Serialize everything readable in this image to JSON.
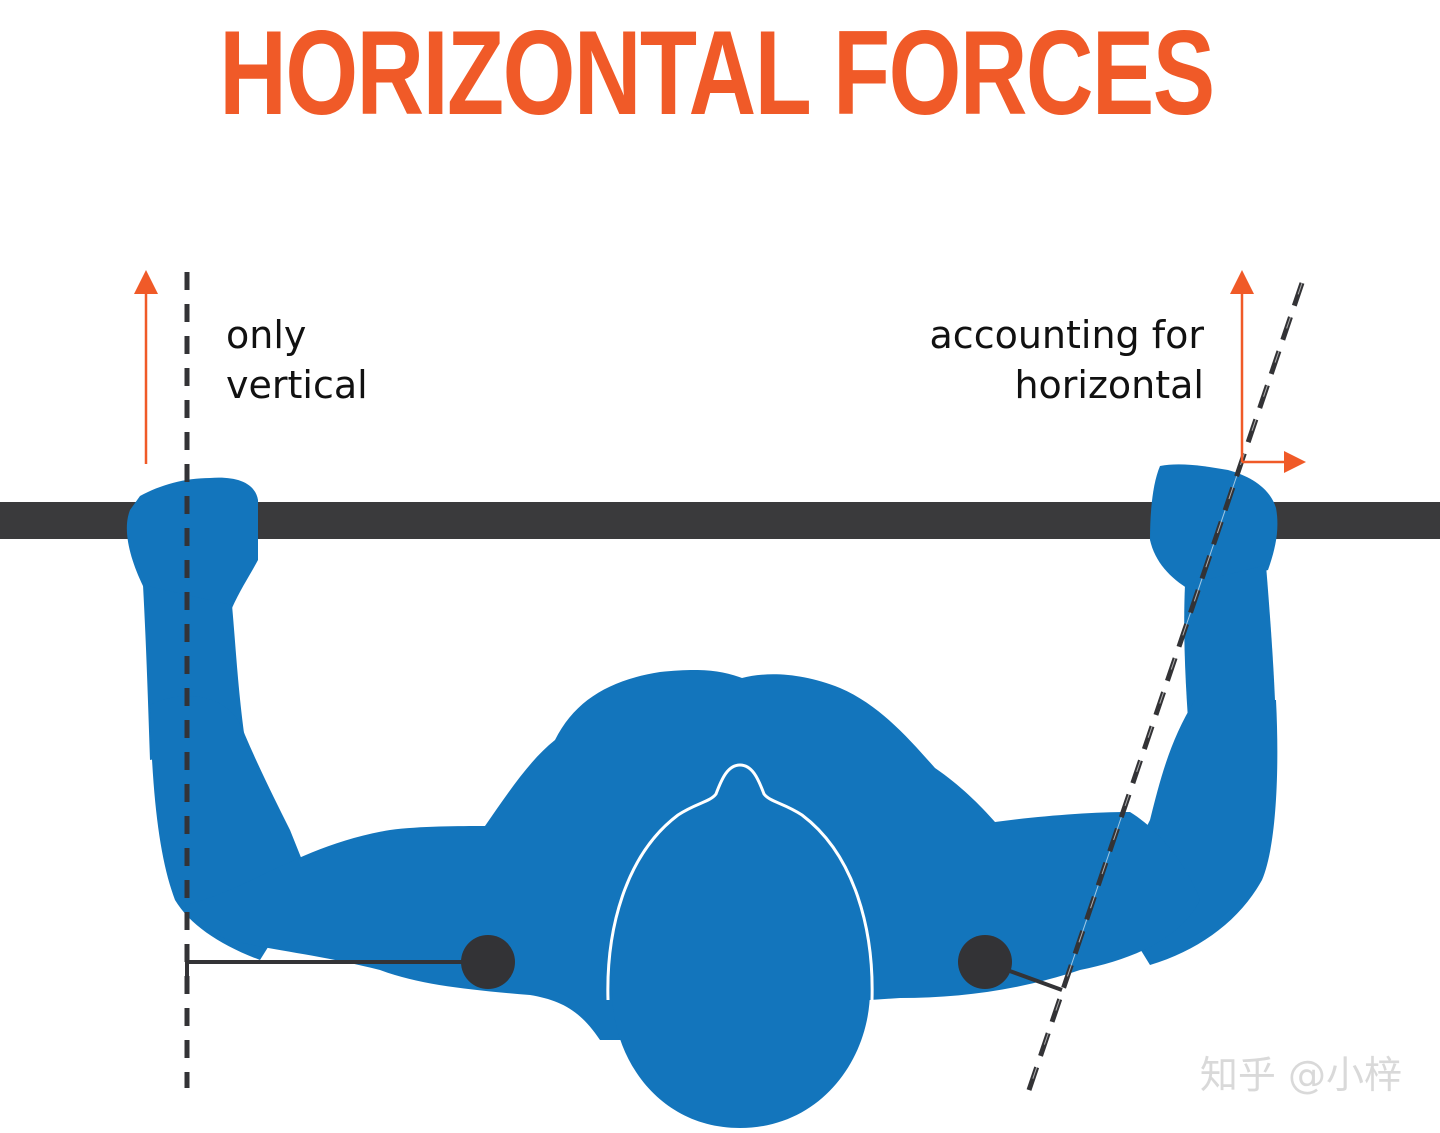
{
  "title": "HORIZONTAL FORCES",
  "labels": {
    "left": {
      "line1": "only",
      "line2": "vertical"
    },
    "right": {
      "line1": "accounting for",
      "line2": "horizontal"
    }
  },
  "watermark": "知乎 @小梓",
  "colors": {
    "title": "#f05a28",
    "arrow": "#f05a28",
    "body": "#1375bc",
    "bar": "#3a3a3c",
    "joint": "#333336",
    "dashed_line": "#333336",
    "text": "#111111"
  },
  "icons": {
    "force_arrow_vertical": "arrow-up-icon",
    "force_arrow_horizontal": "arrow-right-icon"
  }
}
